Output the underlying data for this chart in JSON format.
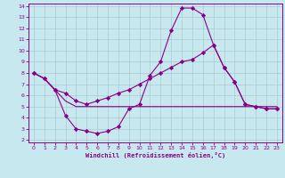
{
  "xlabel": "Windchill (Refroidissement éolien,°C)",
  "bg_color": "#c8e8f0",
  "grid_color": "#aacccc",
  "line_color": "#880088",
  "xlim": [
    -0.5,
    23.5
  ],
  "ylim": [
    1.8,
    14.2
  ],
  "xticks": [
    0,
    1,
    2,
    3,
    4,
    5,
    6,
    7,
    8,
    9,
    10,
    11,
    12,
    13,
    14,
    15,
    16,
    17,
    18,
    19,
    20,
    21,
    22,
    23
  ],
  "yticks": [
    2,
    3,
    4,
    5,
    6,
    7,
    8,
    9,
    10,
    11,
    12,
    13,
    14
  ],
  "curve_peak_x": [
    0,
    1,
    2,
    3,
    4,
    5,
    6,
    7,
    8,
    9,
    10,
    11,
    12,
    13,
    14,
    15,
    16,
    17,
    18,
    19,
    20,
    21,
    22,
    23
  ],
  "curve_peak_y": [
    8.0,
    7.5,
    6.5,
    4.2,
    3.0,
    2.8,
    2.6,
    2.8,
    3.2,
    4.8,
    5.2,
    7.8,
    9.0,
    11.8,
    13.8,
    13.8,
    13.2,
    10.5,
    8.5,
    7.2,
    5.2,
    5.0,
    4.8,
    4.8
  ],
  "curve_mid_x": [
    0,
    1,
    2,
    3,
    4,
    5,
    6,
    7,
    8,
    9,
    10,
    11,
    12,
    13,
    14,
    15,
    16,
    17,
    18,
    19,
    20,
    21,
    22,
    23
  ],
  "curve_mid_y": [
    8.0,
    7.5,
    6.5,
    6.2,
    5.5,
    5.2,
    5.5,
    5.8,
    6.2,
    6.5,
    7.0,
    7.5,
    8.0,
    8.5,
    9.0,
    9.2,
    9.8,
    10.5,
    8.5,
    7.2,
    5.2,
    5.0,
    4.8,
    4.8
  ],
  "curve_flat_x": [
    0,
    1,
    2,
    3,
    4,
    5,
    6,
    7,
    8,
    9,
    10,
    11,
    12,
    13,
    14,
    15,
    16,
    17,
    18,
    19,
    20,
    21,
    22,
    23
  ],
  "curve_flat_y": [
    8.0,
    7.5,
    6.5,
    5.5,
    5.0,
    5.0,
    5.0,
    5.0,
    5.0,
    5.0,
    5.0,
    5.0,
    5.0,
    5.0,
    5.0,
    5.0,
    5.0,
    5.0,
    5.0,
    5.0,
    5.0,
    5.0,
    5.0,
    5.0
  ]
}
